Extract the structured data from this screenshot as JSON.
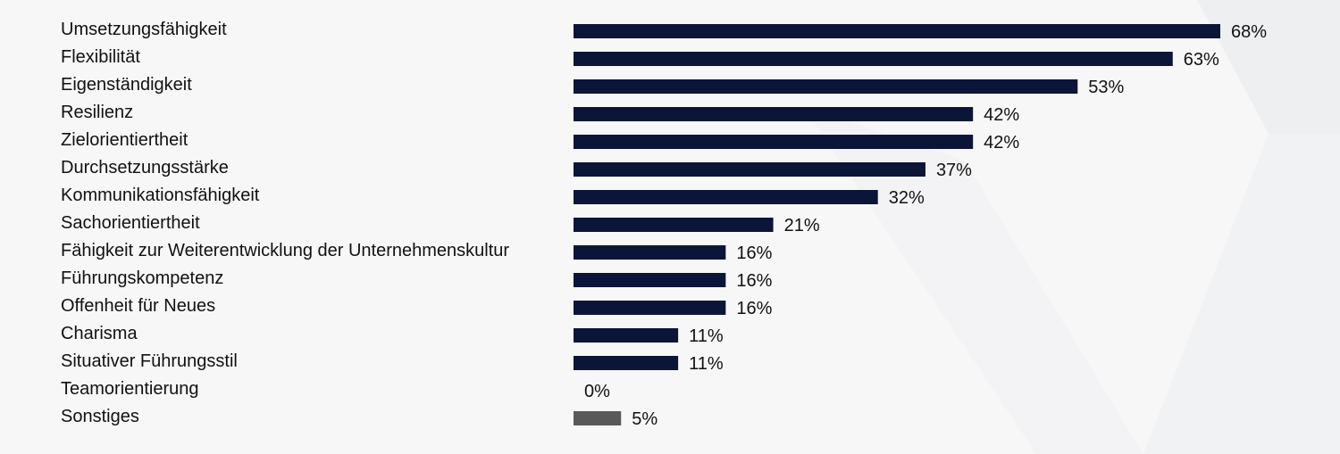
{
  "chart_data": {
    "type": "bar",
    "orientation": "horizontal",
    "categories": [
      "Umsetzungsfähigkeit",
      "Flexibilität",
      "Eigenständigkeit",
      "Resilienz",
      "Zielorientiertheit",
      "Durchsetzungsstärke",
      "Kommunikationsfähigkeit",
      "Sachorientiertheit",
      "Fähigkeit zur Weiterentwicklung der Unternehmenskultur",
      "Führungskompetenz",
      "Offenheit für Neues",
      "Charisma",
      "Situativer Führungsstil",
      "Teamorientierung",
      "Sonstiges"
    ],
    "values": [
      68,
      63,
      53,
      42,
      42,
      37,
      32,
      21,
      16,
      16,
      16,
      11,
      11,
      0,
      5
    ],
    "value_labels": [
      "68%",
      "63%",
      "53%",
      "42%",
      "42%",
      "37%",
      "32%",
      "21%",
      "16%",
      "16%",
      "16%",
      "11%",
      "11%",
      "0%",
      "5%"
    ],
    "unit": "%",
    "xlim": [
      0,
      68
    ],
    "title": "",
    "xlabel": "",
    "ylabel": "",
    "grid": false,
    "legend": "none",
    "colors": {
      "bar": "#0b1538",
      "bar_other": "#595959",
      "background": "#f7f7f8",
      "text": "#111111"
    }
  }
}
